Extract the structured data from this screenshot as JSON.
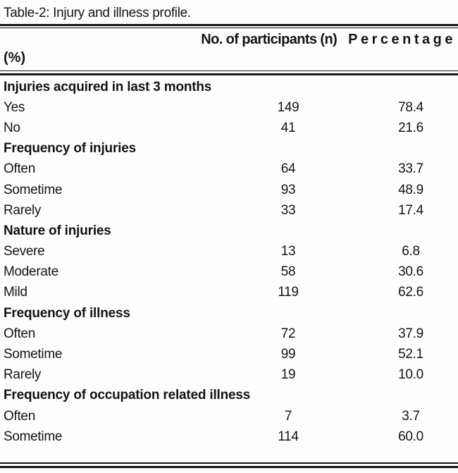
{
  "title": "Table-2: Injury and illness profile.",
  "header": {
    "participants": "No. of participants (n)",
    "percentage": "Percentage",
    "percentage_unit": "(%)"
  },
  "table": {
    "columns": [
      "",
      "No. of participants (n)",
      "Percentage (%)"
    ],
    "rows": [
      {
        "type": "section",
        "label": "Injuries acquired in last 3 months"
      },
      {
        "type": "data",
        "label": "Yes",
        "n": "149",
        "pct": "78.4"
      },
      {
        "type": "data",
        "label": "No",
        "n": "41",
        "pct": "21.6"
      },
      {
        "type": "section",
        "label": "Frequency of injuries"
      },
      {
        "type": "data",
        "label": "Often",
        "n": "64",
        "pct": "33.7"
      },
      {
        "type": "data",
        "label": "Sometime",
        "n": "93",
        "pct": "48.9"
      },
      {
        "type": "data",
        "label": "Rarely",
        "n": "33",
        "pct": "17.4"
      },
      {
        "type": "section",
        "label": "Nature of injuries"
      },
      {
        "type": "data",
        "label": "Severe",
        "n": "13",
        "pct": "6.8"
      },
      {
        "type": "data",
        "label": "Moderate",
        "n": "58",
        "pct": "30.6"
      },
      {
        "type": "data",
        "label": "Mild",
        "n": "119",
        "pct": "62.6"
      },
      {
        "type": "section",
        "label": "Frequency of illness"
      },
      {
        "type": "data",
        "label": "Often",
        "n": "72",
        "pct": "37.9"
      },
      {
        "type": "data",
        "label": "Sometime",
        "n": "99",
        "pct": "52.1"
      },
      {
        "type": "data",
        "label": "Rarely",
        "n": "19",
        "pct": "10.0"
      },
      {
        "type": "section",
        "label": "Frequency of occupation related illness"
      },
      {
        "type": "data",
        "label": "Often",
        "n": "7",
        "pct": "3.7"
      },
      {
        "type": "data",
        "label": "Sometime",
        "n": "114",
        "pct": "60.0"
      }
    ]
  }
}
